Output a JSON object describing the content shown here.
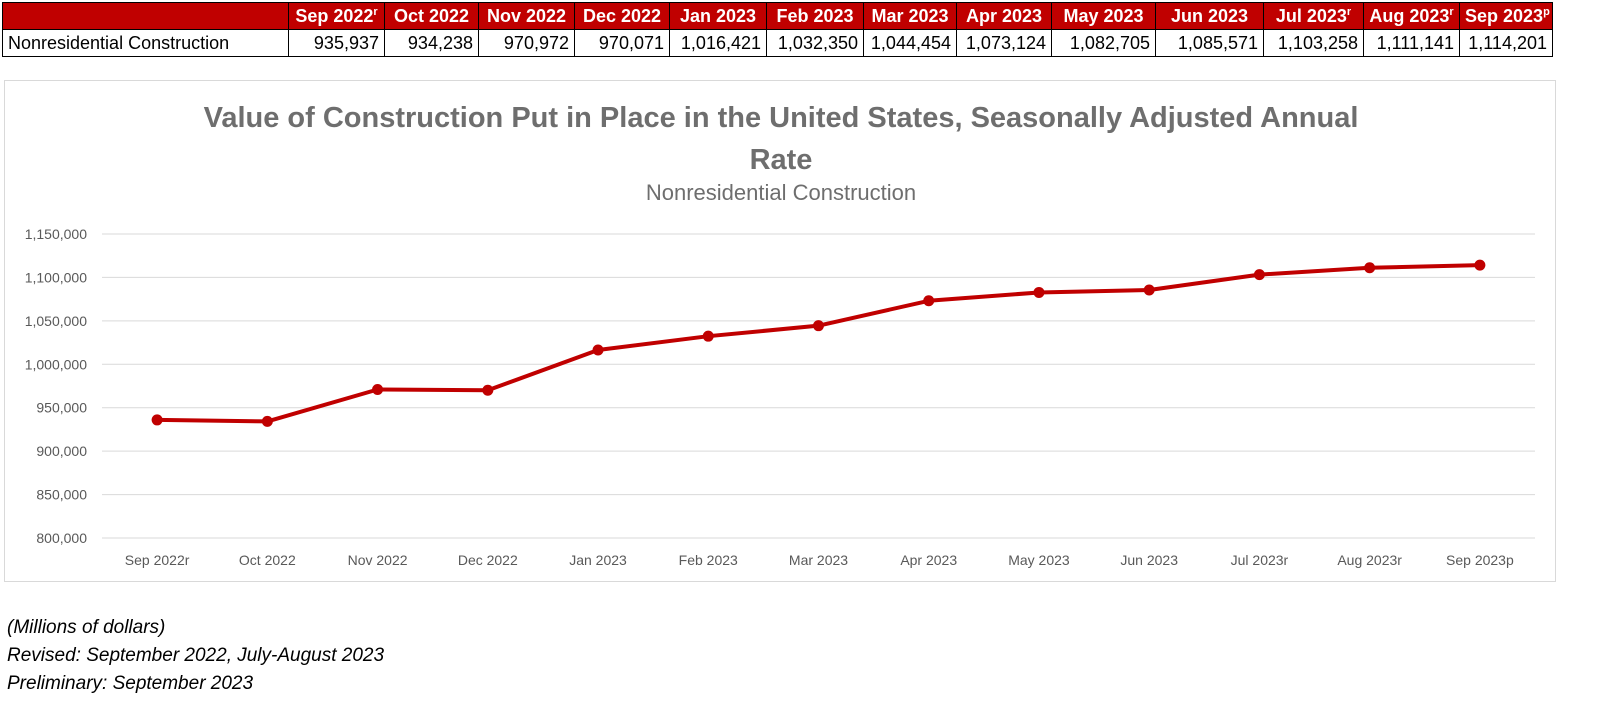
{
  "table": {
    "row_label": "Nonresidential Construction",
    "headers": [
      {
        "label": "Sep 2022",
        "sup": "r"
      },
      {
        "label": "Oct 2022",
        "sup": ""
      },
      {
        "label": "Nov 2022",
        "sup": ""
      },
      {
        "label": "Dec 2022",
        "sup": ""
      },
      {
        "label": "Jan 2023",
        "sup": ""
      },
      {
        "label": "Feb 2023",
        "sup": ""
      },
      {
        "label": "Mar 2023",
        "sup": ""
      },
      {
        "label": "Apr 2023",
        "sup": ""
      },
      {
        "label": "May 2023",
        "sup": ""
      },
      {
        "label": "Jun 2023",
        "sup": ""
      },
      {
        "label": "Jul 2023",
        "sup": "r"
      },
      {
        "label": "Aug 2023",
        "sup": "r"
      },
      {
        "label": "Sep 2023",
        "sup": "p"
      }
    ],
    "values": [
      "935,937",
      "934,238",
      "970,972",
      "970,071",
      "1,016,421",
      "1,032,350",
      "1,044,454",
      "1,073,124",
      "1,082,705",
      "1,085,571",
      "1,103,258",
      "1,111,141",
      "1,114,201"
    ]
  },
  "chart_data": {
    "type": "line",
    "title": "Value of Construction Put in Place in the United States, Seasonally Adjusted Annual Rate",
    "subtitle": "Nonresidential Construction",
    "categories": [
      "Sep 2022r",
      "Oct 2022",
      "Nov 2022",
      "Dec 2022",
      "Jan 2023",
      "Feb 2023",
      "Mar 2023",
      "Apr 2023",
      "May 2023",
      "Jun 2023",
      "Jul 2023r",
      "Aug 2023r",
      "Sep 2023p"
    ],
    "series": [
      {
        "values": [
          935937,
          934238,
          970972,
          970071,
          1016421,
          1032350,
          1044454,
          1073124,
          1082705,
          1085571,
          1103258,
          1111141,
          1114201
        ]
      }
    ],
    "ylim": [
      800000,
      1150000
    ],
    "yticks": [
      800000,
      850000,
      900000,
      950000,
      1000000,
      1050000,
      1100000,
      1150000
    ],
    "ytick_labels": [
      "800,000",
      "850,000",
      "900,000",
      "950,000",
      "1,000,000",
      "1,050,000",
      "1,100,000",
      "1,150,000"
    ],
    "grid": true,
    "line_color": "#c00000"
  },
  "notes": {
    "units": "(Millions of dollars)",
    "revised": "Revised:  September 2022, July-August 2023",
    "preliminary": "Preliminary: September 2023"
  },
  "colors": {
    "header_bg": "#c00000",
    "header_text": "#ffffff",
    "title_text": "#6e6e6e"
  }
}
